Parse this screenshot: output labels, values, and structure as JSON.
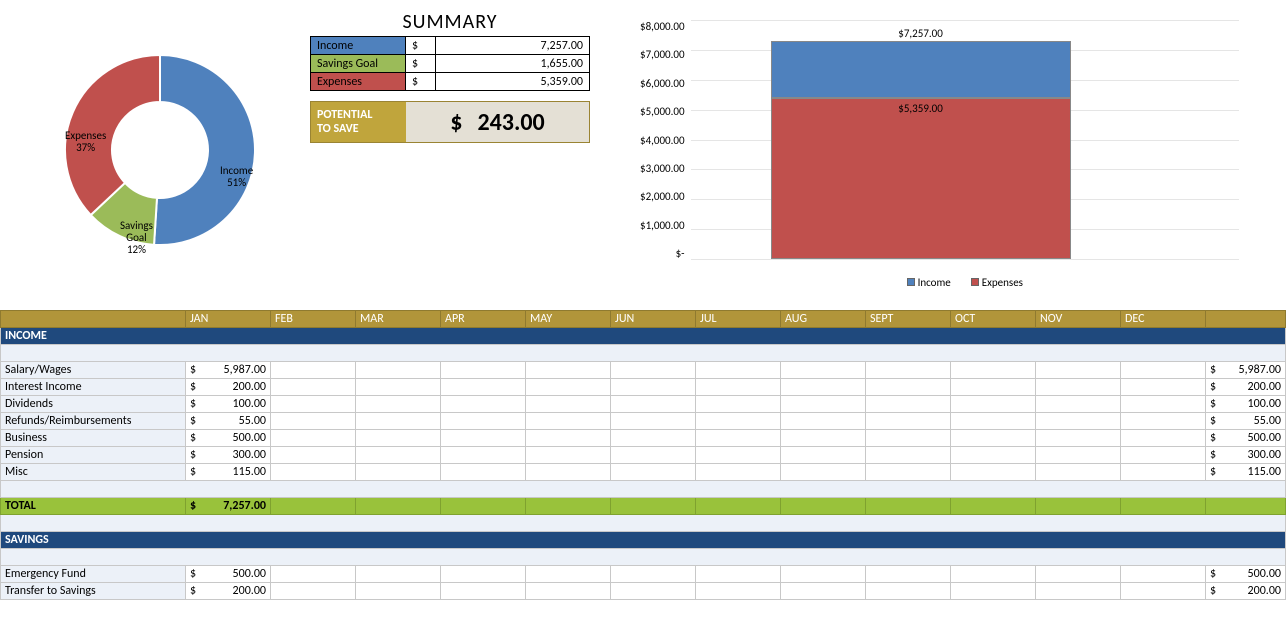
{
  "colors": {
    "income": "#4f81bd",
    "savings": "#9bbb59",
    "expenses": "#c0504d",
    "headerBar": "#b1953a",
    "sectionBar": "#1f497d",
    "totalBar": "#99c23b",
    "potentialLabelBg": "#c0a53c",
    "potentialValueBg": "#e4e0d5",
    "gridline": "#e5e5e5",
    "blankLight": "#ecf1f8"
  },
  "donut": {
    "type": "pie",
    "inner_radius_ratio": 0.5,
    "slices": [
      {
        "name": "Income",
        "pct": 51,
        "color": "#4f81bd",
        "label": "Income\n51%"
      },
      {
        "name": "Savings Goal",
        "pct": 12,
        "color": "#9bbb59",
        "label": "Savings\nGoal\n12%"
      },
      {
        "name": "Expenses",
        "pct": 37,
        "color": "#c0504d",
        "label": "Expenses\n37%"
      }
    ]
  },
  "summary": {
    "title": "SUMMARY",
    "rows": [
      {
        "label": "Income",
        "color": "#4f81bd",
        "currency": "$",
        "value": "7,257.00"
      },
      {
        "label": "Savings Goal",
        "color": "#9bbb59",
        "currency": "$",
        "value": "1,655.00"
      },
      {
        "label": "Expenses",
        "color": "#c0504d",
        "currency": "$",
        "value": "5,359.00"
      }
    ],
    "potential": {
      "label1": "POTENTIAL",
      "label2": "TO SAVE",
      "currency": "$",
      "value": "243.00"
    }
  },
  "barChart": {
    "type": "stacked-bar",
    "ymax": 8000,
    "ytick_step": 1000,
    "yticks": [
      "$8,000.00",
      "$7,000.00",
      "$6,000.00",
      "$5,000.00",
      "$4,000.00",
      "$3,000.00",
      "$2,000.00",
      "$1,000.00",
      "$-"
    ],
    "series": [
      {
        "name": "Income",
        "color": "#4f81bd"
      },
      {
        "name": "Expenses",
        "color": "#c0504d"
      }
    ],
    "total_value": 7257,
    "total_label": "$7,257.00",
    "expenses_value": 5359,
    "expenses_label": "$5,359.00",
    "income_top_value": 1898
  },
  "months": [
    "JAN",
    "FEB",
    "MAR",
    "APR",
    "MAY",
    "JUN",
    "JUL",
    "AUG",
    "SEPT",
    "OCT",
    "NOV",
    "DEC"
  ],
  "incomeSection": {
    "title": "INCOME",
    "rows": [
      {
        "label": "Salary/Wages",
        "jan": "5,987.00",
        "total": "5,987.00"
      },
      {
        "label": "Interest Income",
        "jan": "200.00",
        "total": "200.00"
      },
      {
        "label": "Dividends",
        "jan": "100.00",
        "total": "100.00"
      },
      {
        "label": "Refunds/Reimbursements",
        "jan": "55.00",
        "total": "55.00"
      },
      {
        "label": "Business",
        "jan": "500.00",
        "total": "500.00"
      },
      {
        "label": "Pension",
        "jan": "300.00",
        "total": "300.00"
      },
      {
        "label": "Misc",
        "jan": "115.00",
        "total": "115.00"
      }
    ],
    "total": {
      "label": "TOTAL",
      "jan": "7,257.00"
    }
  },
  "savingsSection": {
    "title": "SAVINGS",
    "rows": [
      {
        "label": "Emergency Fund",
        "jan": "500.00",
        "total": "500.00"
      },
      {
        "label": "Transfer to Savings",
        "jan": "200.00",
        "total": "200.00"
      }
    ]
  }
}
